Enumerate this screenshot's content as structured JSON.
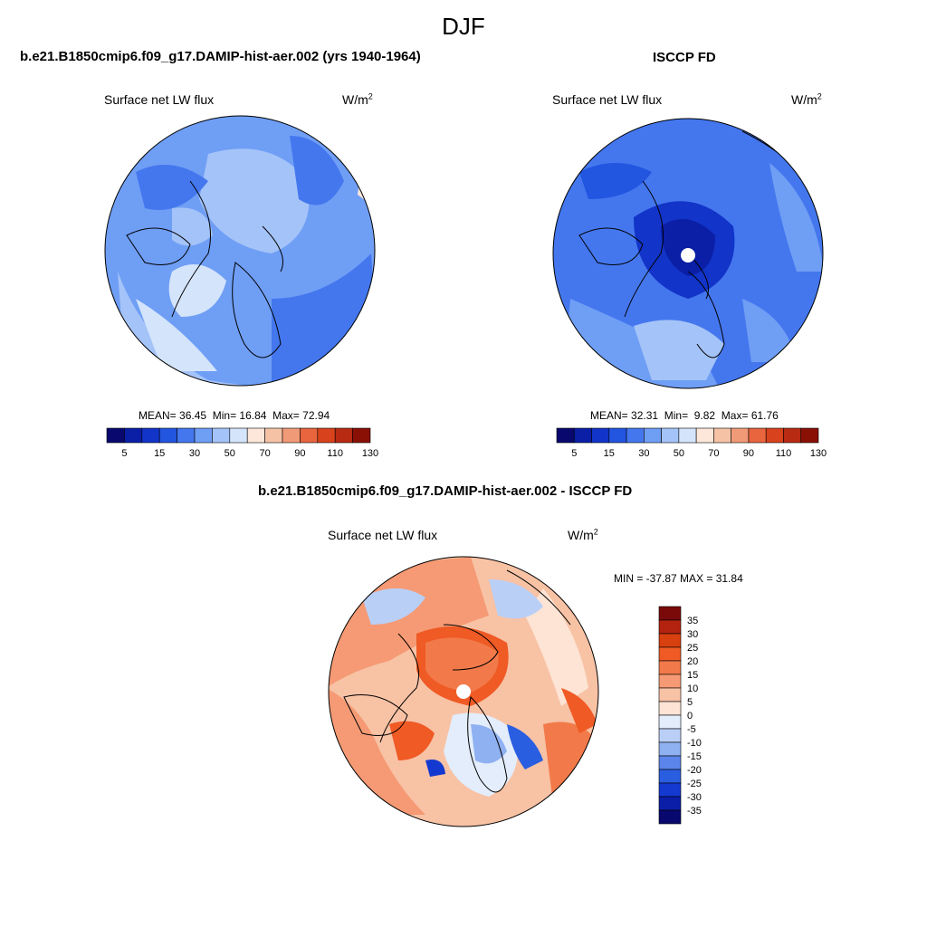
{
  "header": {
    "season": "DJF"
  },
  "panels": [
    {
      "title": "b.e21.B1850cmip6.f09_g17.DAMIP-hist-aer.002 (yrs 1940-1964)",
      "variable": "Surface net LW flux",
      "units": "W/m",
      "units_exp": "2",
      "stats": {
        "mean_label": "MEAN=",
        "mean": "36.45",
        "min_label": "Min=",
        "min": "16.84",
        "max_label": "Max=",
        "max": "72.94"
      },
      "colorbar": {
        "colors": [
          "#08086e",
          "#0a1fa6",
          "#1234c8",
          "#2255e0",
          "#4477ee",
          "#6f9ef5",
          "#a4c3f8",
          "#d3e4fb",
          "#fde7da",
          "#f6c2a6",
          "#f19a77",
          "#e8653e",
          "#d8421c",
          "#b92a12",
          "#8a1006"
        ],
        "tick_labels": [
          "5",
          "15",
          "30",
          "50",
          "70",
          "90",
          "110",
          "130"
        ]
      }
    },
    {
      "title": "ISCCP FD",
      "variable": "Surface net LW flux",
      "units": "W/m",
      "units_exp": "2",
      "stats": {
        "mean_label": "MEAN=",
        "mean": "32.31",
        "min_label": "Min=",
        "min": "9.82",
        "max_label": "Max=",
        "max": "61.76"
      },
      "colorbar": {
        "colors": [
          "#08086e",
          "#0a1fa6",
          "#1234c8",
          "#2255e0",
          "#4477ee",
          "#6f9ef5",
          "#a4c3f8",
          "#d3e4fb",
          "#fde7da",
          "#f6c2a6",
          "#f19a77",
          "#e8653e",
          "#d8421c",
          "#b92a12",
          "#8a1006"
        ],
        "tick_labels": [
          "5",
          "15",
          "30",
          "50",
          "70",
          "90",
          "110",
          "130"
        ]
      }
    },
    {
      "title": "b.e21.B1850cmip6.f09_g17.DAMIP-hist-aer.002 - ISCCP FD",
      "variable": "Surface net LW flux",
      "units": "W/m",
      "units_exp": "2",
      "minmax": "MIN = -37.87 MAX =  31.84",
      "colorbar": {
        "colors": [
          "#7a0a0a",
          "#b3230f",
          "#d8400f",
          "#ef5a25",
          "#f27a4a",
          "#f59a74",
          "#f8c2a5",
          "#fde4d4",
          "#e3edfb",
          "#b9cff6",
          "#8fb0f1",
          "#5b85ea",
          "#2a5ee0",
          "#1439d0",
          "#0a1ea8",
          "#08086e"
        ],
        "tick_labels": [
          "35",
          "30",
          "25",
          "20",
          "15",
          "10",
          "5",
          "0",
          "-5",
          "-10",
          "-15",
          "-20",
          "-25",
          "-30",
          "-35"
        ]
      }
    }
  ]
}
